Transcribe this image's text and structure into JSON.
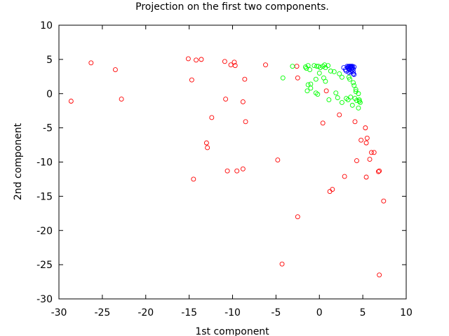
{
  "chart_data": {
    "type": "scatter",
    "title": "Projection on the first two components.",
    "xlabel": "1st component",
    "ylabel": "2nd component",
    "xlim": [
      -30,
      10
    ],
    "ylim": [
      -30,
      10
    ],
    "xticks": [
      -30,
      -25,
      -20,
      -15,
      -10,
      -5,
      0,
      5,
      10
    ],
    "yticks": [
      -30,
      -25,
      -20,
      -15,
      -10,
      -5,
      0,
      5,
      10
    ],
    "xtick_labels": [
      "-30",
      "-25",
      "-20",
      "-15",
      "-10",
      "-5",
      "0",
      "5",
      "10"
    ],
    "ytick_labels": [
      "-30",
      "-25",
      "-20",
      "-15",
      "-10",
      "-5",
      "0",
      "5",
      "10"
    ],
    "grid": false,
    "legend": "none",
    "marker": "circle-open",
    "series": [
      {
        "color": "#ff0000",
        "points": [
          [
            -28.6,
            -1.1
          ],
          [
            -26.3,
            4.5
          ],
          [
            -23.5,
            3.5
          ],
          [
            -22.8,
            -0.8
          ],
          [
            -15.1,
            5.1
          ],
          [
            -14.7,
            2.0
          ],
          [
            -14.2,
            4.9
          ],
          [
            -13.6,
            5.0
          ],
          [
            -14.5,
            -12.5
          ],
          [
            -13.0,
            -7.2
          ],
          [
            -12.9,
            -7.9
          ],
          [
            -12.4,
            -3.5
          ],
          [
            -10.9,
            4.7
          ],
          [
            -10.2,
            4.2
          ],
          [
            -9.8,
            4.6
          ],
          [
            -9.7,
            4.1
          ],
          [
            -10.8,
            -0.8
          ],
          [
            -10.6,
            -11.3
          ],
          [
            -9.5,
            -11.3
          ],
          [
            -8.8,
            -11.0
          ],
          [
            -8.6,
            2.1
          ],
          [
            -8.8,
            -1.2
          ],
          [
            -8.5,
            -4.1
          ],
          [
            -6.2,
            4.2
          ],
          [
            -4.8,
            -9.7
          ],
          [
            -4.3,
            -24.9
          ],
          [
            -2.6,
            4.0
          ],
          [
            -2.5,
            2.3
          ],
          [
            -2.5,
            -18.0
          ],
          [
            0.4,
            -4.3
          ],
          [
            0.8,
            0.4
          ],
          [
            1.2,
            -14.3
          ],
          [
            1.5,
            -14.0
          ],
          [
            2.3,
            -3.1
          ],
          [
            2.9,
            -12.1
          ],
          [
            4.1,
            -4.1
          ],
          [
            4.3,
            -9.8
          ],
          [
            4.8,
            -6.8
          ],
          [
            5.3,
            -5.0
          ],
          [
            5.4,
            -7.2
          ],
          [
            5.5,
            -6.5
          ],
          [
            5.4,
            -12.2
          ],
          [
            5.8,
            -9.6
          ],
          [
            6.0,
            -8.6
          ],
          [
            6.3,
            -8.6
          ],
          [
            6.8,
            -11.4
          ],
          [
            6.9,
            -11.3
          ],
          [
            6.9,
            -26.5
          ],
          [
            7.4,
            -15.7
          ]
        ]
      },
      {
        "color": "#00ff00",
        "points": [
          [
            -4.2,
            2.3
          ],
          [
            -3.1,
            4.0
          ],
          [
            -1.6,
            3.9
          ],
          [
            -1.5,
            3.7
          ],
          [
            -1.3,
            4.1
          ],
          [
            -1.1,
            3.5
          ],
          [
            -1.3,
            1.3
          ],
          [
            -1.4,
            0.4
          ],
          [
            -1.0,
            0.8
          ],
          [
            -1.0,
            1.4
          ],
          [
            -0.6,
            4.1
          ],
          [
            -0.3,
            4.0
          ],
          [
            -0.1,
            4.0
          ],
          [
            0.0,
            3.0
          ],
          [
            0.1,
            3.8
          ],
          [
            0.4,
            4.0
          ],
          [
            0.6,
            4.2
          ],
          [
            0.7,
            3.8
          ],
          [
            1.0,
            4.1
          ],
          [
            1.3,
            3.3
          ],
          [
            -0.4,
            2.1
          ],
          [
            0.5,
            2.3
          ],
          [
            0.7,
            1.8
          ],
          [
            -0.4,
            0.1
          ],
          [
            -0.2,
            -0.1
          ],
          [
            1.1,
            -0.9
          ],
          [
            1.7,
            3.2
          ],
          [
            1.9,
            0.1
          ],
          [
            2.1,
            -0.6
          ],
          [
            2.3,
            2.9
          ],
          [
            2.6,
            2.4
          ],
          [
            2.6,
            -1.3
          ],
          [
            3.1,
            -0.7
          ],
          [
            3.3,
            -0.9
          ],
          [
            3.4,
            2.4
          ],
          [
            3.5,
            2.1
          ],
          [
            3.6,
            -0.5
          ],
          [
            3.8,
            -1.7
          ],
          [
            3.9,
            1.6
          ],
          [
            4.0,
            1.2
          ],
          [
            4.1,
            -0.7
          ],
          [
            4.2,
            0.6
          ],
          [
            4.2,
            0.3
          ],
          [
            4.3,
            -1.0
          ],
          [
            4.5,
            -2.1
          ],
          [
            4.6,
            -1.1
          ],
          [
            4.6,
            -0.9
          ],
          [
            4.7,
            -1.3
          ],
          [
            4.5,
            0.0
          ]
        ]
      },
      {
        "color": "#0000ff",
        "points": [
          [
            2.8,
            3.8
          ],
          [
            3.0,
            3.5
          ],
          [
            3.1,
            3.3
          ],
          [
            3.2,
            4.0
          ],
          [
            3.3,
            3.9
          ],
          [
            3.3,
            3.7
          ],
          [
            3.4,
            3.6
          ],
          [
            3.4,
            4.0
          ],
          [
            3.5,
            3.8
          ],
          [
            3.5,
            3.5
          ],
          [
            3.6,
            4.0
          ],
          [
            3.6,
            3.9
          ],
          [
            3.7,
            3.7
          ],
          [
            3.7,
            3.4
          ],
          [
            3.8,
            4.0
          ],
          [
            3.8,
            3.8
          ],
          [
            3.9,
            3.6
          ],
          [
            3.9,
            3.2
          ],
          [
            4.0,
            3.9
          ],
          [
            4.0,
            2.8
          ],
          [
            3.4,
            3.1
          ],
          [
            3.6,
            3.2
          ],
          [
            3.9,
            2.9
          ],
          [
            3.5,
            4.0
          ],
          [
            3.7,
            4.0
          ]
        ]
      }
    ]
  }
}
